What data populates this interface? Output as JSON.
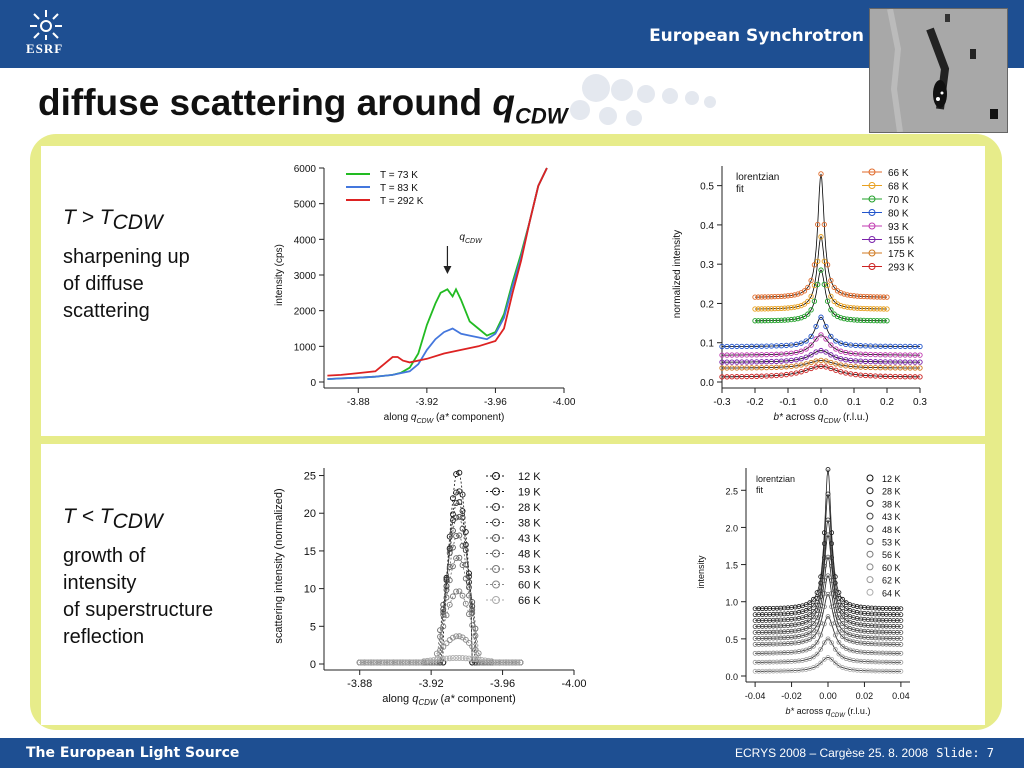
{
  "header": {
    "logo_text": "ESRF",
    "brand": "European Synchrotron"
  },
  "title": {
    "text": "diffuse scattering around ",
    "symbol": "q",
    "subscript": "CDW"
  },
  "panels": {
    "top": {
      "condition": "T > T",
      "condition_sub": "CDW",
      "line1": "sharpening up",
      "line2": "of diffuse",
      "line3": "scattering"
    },
    "bottom": {
      "condition": "T < T",
      "condition_sub": "CDW",
      "line1": "growth of",
      "line2": "intensity",
      "line3": "of superstructure",
      "line4": "reflection"
    }
  },
  "chart_data": [
    {
      "id": "c1",
      "type": "line",
      "ylabel": "intensity (cps)",
      "xlabel_parts": [
        "along ",
        "q",
        "CDW",
        " (",
        "a*",
        " component)"
      ],
      "xlim": [
        -3.86,
        -4.0
      ],
      "ylim": [
        0,
        6000
      ],
      "xticks": [
        -3.88,
        -3.92,
        -3.96,
        -4.0
      ],
      "xtick_labels": [
        "-3.88",
        "-3.92",
        "-3.96",
        "-4.00"
      ],
      "yticks": [
        0,
        1000,
        2000,
        3000,
        4000,
        5000,
        6000
      ],
      "ytick_labels": [
        "0",
        "1000",
        "2000",
        "3000",
        "4000",
        "5000",
        "6000"
      ],
      "annotation": {
        "text": "q",
        "sub": "CDW",
        "x": -3.932
      },
      "series": [
        {
          "name": "T =  73 K",
          "color": "#22bb22",
          "x": [
            -3.862,
            -3.87,
            -3.88,
            -3.89,
            -3.9,
            -3.905,
            -3.91,
            -3.915,
            -3.92,
            -3.925,
            -3.928,
            -3.932,
            -3.935,
            -3.937,
            -3.94,
            -3.945,
            -3.95,
            -3.955,
            -3.96,
            -3.965,
            -3.97,
            -3.975,
            -3.98,
            -3.985,
            -3.99
          ],
          "values": [
            80,
            100,
            120,
            150,
            200,
            260,
            400,
            800,
            1600,
            2200,
            2500,
            2600,
            2400,
            2600,
            2300,
            1700,
            1500,
            1300,
            1400,
            1900,
            2800,
            3600,
            4500,
            5500,
            6000
          ]
        },
        {
          "name": "T =  83 K",
          "color": "#4477dd",
          "x": [
            -3.862,
            -3.87,
            -3.88,
            -3.89,
            -3.9,
            -3.91,
            -3.915,
            -3.92,
            -3.925,
            -3.93,
            -3.935,
            -3.94,
            -3.945,
            -3.95,
            -3.955,
            -3.96,
            -3.965,
            -3.97,
            -3.975,
            -3.98,
            -3.985,
            -3.99
          ],
          "values": [
            80,
            100,
            120,
            150,
            200,
            300,
            500,
            900,
            1200,
            1400,
            1500,
            1350,
            1300,
            1250,
            1200,
            1350,
            1800,
            2700,
            3500,
            4500,
            5500,
            6000
          ]
        },
        {
          "name": "T = 292 K",
          "color": "#dd2222",
          "x": [
            -3.862,
            -3.87,
            -3.88,
            -3.89,
            -3.895,
            -3.9,
            -3.903,
            -3.906,
            -3.91,
            -3.92,
            -3.93,
            -3.94,
            -3.95,
            -3.96,
            -3.965,
            -3.97,
            -3.975,
            -3.98,
            -3.985,
            -3.99
          ],
          "values": [
            180,
            200,
            250,
            300,
            500,
            700,
            700,
            600,
            550,
            650,
            800,
            900,
            1000,
            1150,
            1500,
            2500,
            3400,
            4500,
            5500,
            6000
          ]
        }
      ]
    },
    {
      "id": "c2",
      "type": "scatter",
      "ylabel": "normalized intensity",
      "xlabel_parts": [
        "b*",
        " across ",
        "q",
        "CDW",
        " (r.l.u.)"
      ],
      "xlim": [
        -0.3,
        0.3
      ],
      "ylim": [
        0,
        0.55
      ],
      "xticks": [
        -0.3,
        -0.2,
        -0.1,
        0,
        0.1,
        0.2,
        0.3
      ],
      "xtick_labels": [
        "-0.3",
        "-0.2",
        "-0.1",
        "0.0",
        "0.1",
        "0.2",
        "0.3"
      ],
      "yticks": [
        0,
        0.1,
        0.2,
        0.3,
        0.4,
        0.5
      ],
      "ytick_labels": [
        "0.0",
        "0.1",
        "0.2",
        "0.3",
        "0.4",
        "0.5"
      ],
      "note": [
        "lorentzian",
        "fit"
      ],
      "series": [
        {
          "name": "66 K",
          "color": "#e06a2a",
          "baseline": 0.215,
          "peak": 0.53,
          "width": 0.012
        },
        {
          "name": "68 K",
          "color": "#e8a020",
          "baseline": 0.185,
          "peak": 0.37,
          "width": 0.014
        },
        {
          "name": "70 K",
          "color": "#22a02a",
          "baseline": 0.155,
          "peak": 0.285,
          "width": 0.016
        },
        {
          "name": "80 K",
          "color": "#2255cc",
          "baseline": 0.09,
          "peak": 0.165,
          "width": 0.022
        },
        {
          "name": "93 K",
          "color": "#c03ab0",
          "baseline": 0.068,
          "peak": 0.12,
          "width": 0.03
        },
        {
          "name": "155 K",
          "color": "#7a22aa",
          "baseline": 0.05,
          "peak": 0.08,
          "width": 0.04
        },
        {
          "name": "175 K",
          "color": "#d07a20",
          "baseline": 0.035,
          "peak": 0.055,
          "width": 0.05
        },
        {
          "name": "293 K",
          "color": "#cc2222",
          "baseline": 0.012,
          "peak": 0.04,
          "width": 0.06
        }
      ]
    },
    {
      "id": "c3",
      "type": "scatter",
      "ylabel": "scattering intensity (normalized)",
      "xlabel_parts": [
        "along ",
        "q",
        "CDW",
        " (",
        "a*",
        " component)"
      ],
      "xlim": [
        -3.86,
        -4.0
      ],
      "ylim": [
        0,
        26
      ],
      "xticks": [
        -3.88,
        -3.92,
        -3.96,
        -4.0
      ],
      "xtick_labels": [
        "-3.88",
        "-3.92",
        "-3.96",
        "-4.00"
      ],
      "yticks": [
        0,
        5,
        10,
        15,
        20,
        25
      ],
      "ytick_labels": [
        "0",
        "5",
        "10",
        "15",
        "20",
        "25"
      ],
      "series": [
        {
          "name": "12 K",
          "color": "#111111",
          "peak": 25.5,
          "width": 0.005
        },
        {
          "name": "19 K",
          "color": "#222222",
          "peak": 23.0,
          "width": 0.005
        },
        {
          "name": "28 K",
          "color": "#333333",
          "peak": 21.5,
          "width": 0.0055
        },
        {
          "name": "38 K",
          "color": "#444444",
          "peak": 19.5,
          "width": 0.006
        },
        {
          "name": "43 K",
          "color": "#555555",
          "peak": 17.0,
          "width": 0.006
        },
        {
          "name": "48 K",
          "color": "#666666",
          "peak": 14.0,
          "width": 0.0065
        },
        {
          "name": "53 K",
          "color": "#777777",
          "peak": 9.5,
          "width": 0.007
        },
        {
          "name": "60 K",
          "color": "#888888",
          "peak": 3.5,
          "width": 0.008
        },
        {
          "name": "66 K",
          "color": "#aaaaaa",
          "peak": 0.6,
          "width": 0.012
        }
      ]
    },
    {
      "id": "c4",
      "type": "scatter",
      "ylabel": "intensity",
      "xlabel_parts": [
        "b*",
        " across ",
        "q",
        "CDW",
        " (r.l.u.)"
      ],
      "xlim": [
        -0.045,
        0.045
      ],
      "ylim": [
        0,
        2.8
      ],
      "xticks": [
        -0.04,
        -0.02,
        0,
        0.02,
        0.04
      ],
      "xtick_labels": [
        "-0.04",
        "-0.02",
        "0.00",
        "0.02",
        "0.04"
      ],
      "yticks": [
        0,
        0.5,
        1.0,
        1.5,
        2.0,
        2.5
      ],
      "ytick_labels": [
        "0.0",
        "0.5",
        "1.0",
        "1.5",
        "2.0",
        "2.5"
      ],
      "note": [
        "lorentzian",
        "fit"
      ],
      "series": [
        {
          "name": "12 K",
          "color": "#111111",
          "baseline": 0.9,
          "peak": 2.78,
          "width": 0.0022
        },
        {
          "name": "28 K",
          "color": "#222222",
          "baseline": 0.82,
          "peak": 2.45,
          "width": 0.0024
        },
        {
          "name": "38 K",
          "color": "#333333",
          "baseline": 0.74,
          "peak": 2.1,
          "width": 0.0026
        },
        {
          "name": "43 K",
          "color": "#444444",
          "baseline": 0.66,
          "peak": 1.9,
          "width": 0.0028
        },
        {
          "name": "48 K",
          "color": "#555555",
          "baseline": 0.58,
          "peak": 1.6,
          "width": 0.003
        },
        {
          "name": "53 K",
          "color": "#666666",
          "baseline": 0.5,
          "peak": 1.35,
          "width": 0.0032
        },
        {
          "name": "56 K",
          "color": "#777777",
          "baseline": 0.42,
          "peak": 1.1,
          "width": 0.0035
        },
        {
          "name": "60 K",
          "color": "#888888",
          "baseline": 0.3,
          "peak": 0.8,
          "width": 0.004
        },
        {
          "name": "62 K",
          "color": "#999999",
          "baseline": 0.18,
          "peak": 0.5,
          "width": 0.0045
        },
        {
          "name": "64 K",
          "color": "#aaaaaa",
          "baseline": 0.06,
          "peak": 0.25,
          "width": 0.005
        }
      ]
    }
  ],
  "footer": {
    "left": "The European Light Source",
    "right": "ECRYS 2008 – Cargèse  25. 8. 2008",
    "slide": "Slide: 7"
  }
}
